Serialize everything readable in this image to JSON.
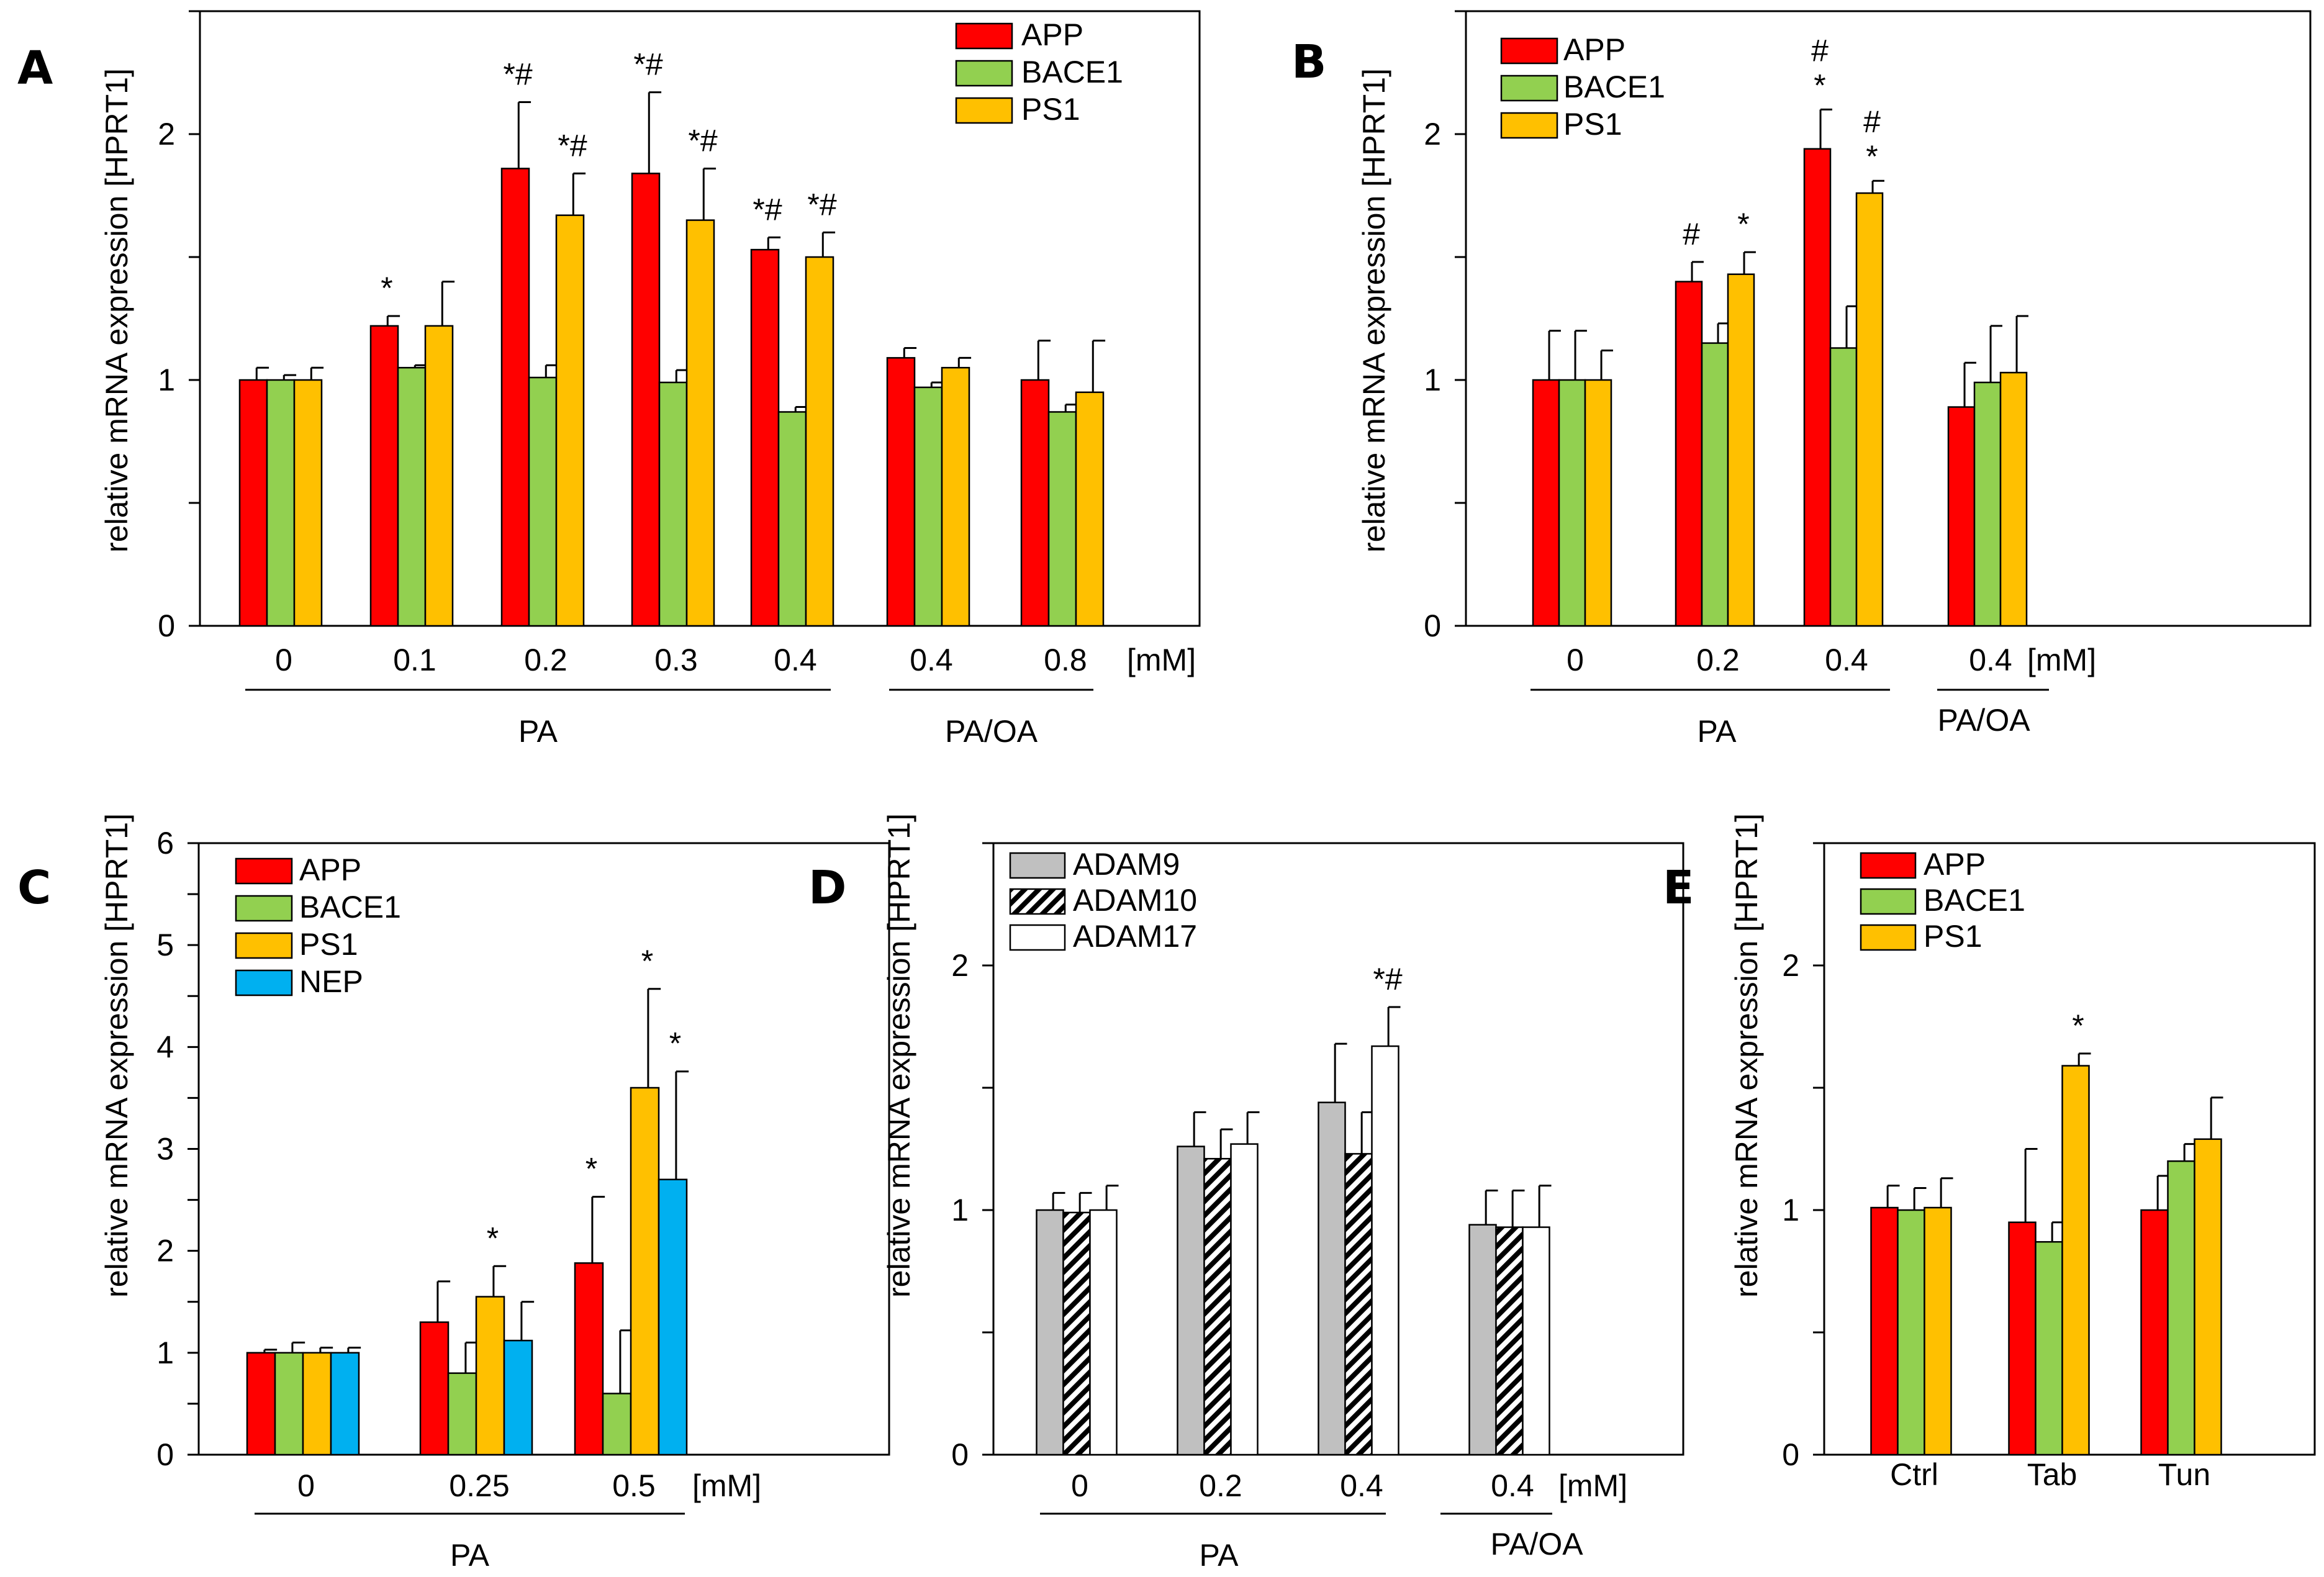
{
  "colors": {
    "APP": "#ff0000",
    "BACE1": "#92d050",
    "PS1": "#ffc000",
    "NEP": "#00b0f0",
    "ADAM9": "#c0c0c0",
    "ADAM10": "hatched",
    "ADAM17": "#ffffff"
  },
  "chart_data": [
    {
      "panel": "A",
      "type": "bar",
      "ylabel": "relative mRNA expression [HPRT1]",
      "ylim": [
        0,
        2.5
      ],
      "yticks": [
        "0",
        "1",
        "2"
      ],
      "ytick_values": [
        0,
        1,
        2
      ],
      "unit": "[mM]",
      "categories": [
        "0",
        "0.1",
        "0.2",
        "0.3",
        "0.4",
        "0.4",
        "0.8"
      ],
      "series": [
        {
          "name": "APP",
          "values": [
            1.0,
            1.22,
            1.86,
            1.84,
            1.53,
            1.09,
            1.0
          ],
          "errors": [
            0.05,
            0.04,
            0.27,
            0.33,
            0.05,
            0.04,
            0.16
          ],
          "marks": [
            "",
            "*",
            "*#",
            "*#",
            "*#",
            "",
            ""
          ]
        },
        {
          "name": "BACE1",
          "values": [
            1.0,
            1.05,
            1.01,
            0.99,
            0.87,
            0.97,
            0.87
          ],
          "errors": [
            0.02,
            0.01,
            0.05,
            0.05,
            0.02,
            0.02,
            0.03
          ],
          "marks": [
            "",
            "",
            "",
            "",
            "",
            "",
            ""
          ]
        },
        {
          "name": "PS1",
          "values": [
            1.0,
            1.22,
            1.67,
            1.65,
            1.5,
            1.05,
            0.95
          ],
          "errors": [
            0.05,
            0.18,
            0.17,
            0.21,
            0.1,
            0.04,
            0.21
          ],
          "marks": [
            "",
            "",
            "*#",
            "*#",
            "*#",
            "",
            ""
          ]
        }
      ],
      "groups": [
        {
          "label": "PA",
          "from": 0,
          "to": 4
        },
        {
          "label": "PA/OA",
          "from": 5,
          "to": 6
        }
      ],
      "legend": "top-right"
    },
    {
      "panel": "B",
      "type": "bar",
      "ylabel": "relative mRNA expression [HPRT1]",
      "ylim": [
        0,
        2.5
      ],
      "yticks": [
        "0",
        "1",
        "2"
      ],
      "ytick_values": [
        0,
        1,
        2
      ],
      "unit": "[mM]",
      "categories": [
        "0",
        "0.2",
        "0.4",
        "0.4"
      ],
      "series": [
        {
          "name": "APP",
          "values": [
            1.0,
            1.4,
            1.94,
            0.89
          ],
          "errors": [
            0.2,
            0.08,
            0.16,
            0.18
          ],
          "marks": [
            "",
            "#",
            "*#",
            ""
          ]
        },
        {
          "name": "BACE1",
          "values": [
            1.0,
            1.15,
            1.13,
            0.99
          ],
          "errors": [
            0.2,
            0.08,
            0.17,
            0.23
          ],
          "marks": [
            "",
            "",
            "",
            ""
          ]
        },
        {
          "name": "PS1",
          "values": [
            1.0,
            1.43,
            1.76,
            1.03
          ],
          "errors": [
            0.12,
            0.09,
            0.05,
            0.23
          ],
          "marks": [
            "",
            "*",
            "*#",
            ""
          ]
        }
      ],
      "groups": [
        {
          "label": "PA",
          "from": 0,
          "to": 2
        },
        {
          "label": "PA/OA",
          "from": 3,
          "to": 3
        }
      ],
      "legend": "top-left"
    },
    {
      "panel": "C",
      "type": "bar",
      "ylabel": "relative mRNA expression [HPRT1]",
      "ylim": [
        0,
        6
      ],
      "yticks": [
        "0",
        "1",
        "2",
        "3",
        "4",
        "5",
        "6"
      ],
      "ytick_values": [
        0,
        1,
        2,
        3,
        4,
        5,
        6
      ],
      "unit": "[mM]",
      "categories": [
        "0",
        "0.25",
        "0.5"
      ],
      "series": [
        {
          "name": "APP",
          "values": [
            1.0,
            1.3,
            1.88
          ],
          "errors": [
            0.03,
            0.4,
            0.65
          ],
          "marks": [
            "",
            "",
            "*"
          ]
        },
        {
          "name": "BACE1",
          "values": [
            1.0,
            0.8,
            0.6
          ],
          "errors": [
            0.1,
            0.3,
            0.62
          ],
          "marks": [
            "",
            "",
            ""
          ]
        },
        {
          "name": "PS1",
          "values": [
            1.0,
            1.55,
            3.6
          ],
          "errors": [
            0.05,
            0.3,
            0.97
          ],
          "marks": [
            "",
            "*",
            "*"
          ]
        },
        {
          "name": "NEP",
          "values": [
            1.0,
            1.12,
            2.7
          ],
          "errors": [
            0.05,
            0.38,
            1.06
          ],
          "marks": [
            "",
            "",
            "*"
          ]
        }
      ],
      "groups": [
        {
          "label": "PA",
          "from": 0,
          "to": 2
        }
      ],
      "legend": "top-left"
    },
    {
      "panel": "D",
      "type": "bar",
      "ylabel": "relative mRNA expression [HPRT1]",
      "ylim": [
        0,
        2.5
      ],
      "yticks": [
        "0",
        "1",
        "2"
      ],
      "ytick_values": [
        0,
        1,
        2
      ],
      "unit": "[mM]",
      "categories": [
        "0",
        "0.2",
        "0.4",
        "0.4"
      ],
      "series": [
        {
          "name": "ADAM9",
          "values": [
            1.0,
            1.26,
            1.44,
            0.94
          ],
          "errors": [
            0.07,
            0.14,
            0.24,
            0.14
          ],
          "marks": [
            "",
            "",
            "",
            ""
          ]
        },
        {
          "name": "ADAM10",
          "values": [
            0.99,
            1.21,
            1.23,
            0.93
          ],
          "errors": [
            0.08,
            0.12,
            0.17,
            0.15
          ],
          "marks": [
            "",
            "",
            "",
            ""
          ]
        },
        {
          "name": "ADAM17",
          "values": [
            1.0,
            1.27,
            1.67,
            0.93
          ],
          "errors": [
            0.1,
            0.13,
            0.16,
            0.17
          ],
          "marks": [
            "",
            "",
            "*#",
            ""
          ]
        }
      ],
      "groups": [
        {
          "label": "PA",
          "from": 0,
          "to": 2
        },
        {
          "label": "PA/OA",
          "from": 3,
          "to": 3
        }
      ],
      "legend": "top-left"
    },
    {
      "panel": "E",
      "type": "bar",
      "ylabel": "relative mRNA expression [HPRT1]",
      "ylim": [
        0,
        2.5
      ],
      "yticks": [
        "0",
        "1",
        "2"
      ],
      "ytick_values": [
        0,
        1,
        2
      ],
      "unit": "",
      "categories": [
        "Ctrl",
        "Tab",
        "Tun"
      ],
      "series": [
        {
          "name": "APP",
          "values": [
            1.01,
            0.95,
            1.0
          ],
          "errors": [
            0.09,
            0.3,
            0.14
          ],
          "marks": [
            "",
            "",
            ""
          ]
        },
        {
          "name": "BACE1",
          "values": [
            1.0,
            0.87,
            1.2
          ],
          "errors": [
            0.09,
            0.08,
            0.07
          ],
          "marks": [
            "",
            "",
            ""
          ]
        },
        {
          "name": "PS1",
          "values": [
            1.01,
            1.59,
            1.29
          ],
          "errors": [
            0.12,
            0.05,
            0.17
          ],
          "marks": [
            "",
            "*",
            ""
          ]
        }
      ],
      "groups": [],
      "legend": "top-left"
    }
  ]
}
